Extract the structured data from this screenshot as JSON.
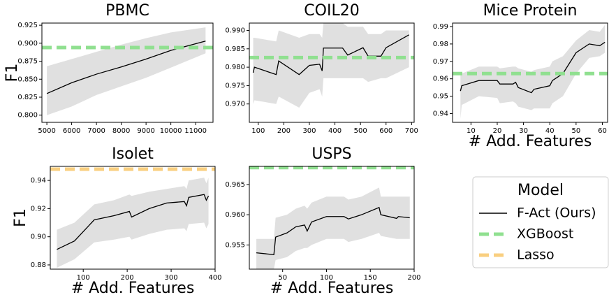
{
  "chart_data": [
    {
      "type": "line",
      "title": "PBMC",
      "ylabel": "F1",
      "x": [
        5000,
        6000,
        7000,
        8000,
        9000,
        10000,
        11400
      ],
      "values": [
        0.83,
        0.845,
        0.857,
        0.867,
        0.878,
        0.89,
        0.903
      ],
      "lower": [
        0.8,
        0.812,
        0.828,
        0.84,
        0.852,
        0.866,
        0.886
      ],
      "upper": [
        0.868,
        0.878,
        0.888,
        0.898,
        0.907,
        0.915,
        0.922
      ],
      "xgboost": 0.894,
      "xlim": [
        4800,
        11700
      ],
      "xticks": [
        5000,
        6000,
        7000,
        8000,
        9000,
        10000,
        11000
      ],
      "ylim": [
        0.79,
        0.928
      ],
      "yticks": [
        {
          "value": 0.8,
          "label": "0.800"
        },
        0.825,
        {
          "value": 0.85,
          "label": "0.850"
        },
        0.875,
        {
          "value": 0.9,
          "label": "0.900"
        },
        0.925
      ]
    },
    {
      "type": "line",
      "title": "COIL20",
      "x": [
        80,
        85,
        170,
        180,
        260,
        300,
        340,
        350,
        355,
        430,
        450,
        510,
        530,
        580,
        600,
        690
      ],
      "values": [
        0.9785,
        0.98,
        0.978,
        0.9817,
        0.978,
        0.9805,
        0.9808,
        0.979,
        0.9852,
        0.9852,
        0.9833,
        0.9853,
        0.983,
        0.983,
        0.9853,
        0.9888
      ],
      "lower": [
        0.97,
        0.971,
        0.97,
        0.972,
        0.969,
        0.973,
        0.974,
        0.972,
        0.977,
        0.977,
        0.977,
        0.977,
        0.976,
        0.977,
        0.977,
        0.98
      ],
      "upper": [
        0.988,
        0.988,
        0.987,
        0.99,
        0.988,
        0.989,
        0.989,
        0.988,
        0.992,
        0.992,
        0.991,
        0.991,
        0.989,
        0.989,
        0.99,
        0.99
      ],
      "xgboost": 0.9826,
      "xlim": [
        65,
        710
      ],
      "xticks": [
        100,
        200,
        300,
        400,
        500,
        600,
        700
      ],
      "ylim": [
        0.965,
        0.992
      ],
      "yticks": [
        {
          "value": 0.97,
          "label": "0.970"
        },
        0.975,
        {
          "value": 0.98,
          "label": "0.980"
        },
        0.985,
        {
          "value": 0.99,
          "label": "0.990"
        }
      ]
    },
    {
      "type": "line",
      "title": "Mice Protein",
      "xlabel": "# Add. Features",
      "x": [
        6,
        6.5,
        13,
        20,
        21,
        26,
        27,
        28,
        33,
        34,
        40,
        41,
        45,
        50,
        55,
        59,
        60,
        61
      ],
      "values": [
        0.953,
        0.956,
        0.959,
        0.959,
        0.957,
        0.957,
        0.958,
        0.955,
        0.952,
        0.954,
        0.956,
        0.959,
        0.963,
        0.975,
        0.98,
        0.979,
        0.98,
        0.981
      ],
      "lower": [
        0.937,
        0.945,
        0.95,
        0.949,
        0.946,
        0.947,
        0.946,
        0.944,
        0.942,
        0.943,
        0.943,
        0.946,
        0.95,
        0.963,
        0.972,
        0.973,
        0.974,
        0.975
      ],
      "upper": [
        0.962,
        0.963,
        0.967,
        0.967,
        0.966,
        0.967,
        0.967,
        0.966,
        0.964,
        0.965,
        0.967,
        0.97,
        0.973,
        0.982,
        0.988,
        0.987,
        0.989,
        0.991
      ],
      "xgboost": 0.963,
      "xlim": [
        3,
        62
      ],
      "xticks": [
        10,
        20,
        30,
        40,
        50,
        60
      ],
      "ylim": [
        0.935,
        0.992
      ],
      "yticks": [
        0.94,
        0.95,
        0.96,
        0.97,
        0.98,
        0.99
      ]
    },
    {
      "type": "line",
      "title": "Isolet",
      "ylabel": "F1",
      "xlabel": "# Add. Features",
      "x": [
        40,
        80,
        125,
        170,
        205,
        210,
        250,
        290,
        330,
        335,
        340,
        375,
        380,
        385
      ],
      "values": [
        0.891,
        0.897,
        0.912,
        0.915,
        0.918,
        0.914,
        0.92,
        0.924,
        0.925,
        0.922,
        0.928,
        0.93,
        0.926,
        0.929
      ],
      "lower": [
        0.878,
        0.884,
        0.896,
        0.898,
        0.9,
        0.898,
        0.902,
        0.905,
        0.906,
        0.904,
        0.909,
        0.91,
        0.906,
        0.909
      ],
      "upper": [
        0.905,
        0.91,
        0.923,
        0.926,
        0.93,
        0.929,
        0.932,
        0.934,
        0.936,
        0.934,
        0.94,
        0.942,
        0.938,
        0.942
      ],
      "lasso": 0.948,
      "xlim": [
        25,
        400
      ],
      "xticks": [
        100,
        200,
        300,
        400
      ],
      "ylim": [
        0.877,
        0.95
      ],
      "yticks": [
        0.88,
        {
          "value": 0.9,
          "label": "0.90"
        },
        0.92,
        0.94
      ]
    },
    {
      "type": "line",
      "title": "USPS",
      "xlabel": "# Add. Features",
      "x": [
        20,
        40,
        42,
        55,
        65,
        75,
        78,
        83,
        100,
        120,
        125,
        140,
        160,
        162,
        180,
        182,
        195
      ],
      "values": [
        0.9537,
        0.9534,
        0.9563,
        0.957,
        0.958,
        0.9583,
        0.9573,
        0.9588,
        0.9597,
        0.9597,
        0.9593,
        0.96,
        0.9612,
        0.96,
        0.9594,
        0.9597,
        0.9595
      ],
      "lower": [
        0.951,
        0.951,
        0.9525,
        0.953,
        0.954,
        0.9545,
        0.9545,
        0.955,
        0.956,
        0.956,
        0.9555,
        0.956,
        0.957,
        0.9565,
        0.956,
        0.956,
        0.956
      ],
      "upper": [
        0.956,
        0.956,
        0.9595,
        0.96,
        0.961,
        0.9615,
        0.961,
        0.962,
        0.963,
        0.963,
        0.9625,
        0.963,
        0.9645,
        0.963,
        0.963,
        0.963,
        0.963
      ],
      "xgboost": 0.9678,
      "xlim": [
        12,
        200
      ],
      "xticks": [
        50,
        100,
        150,
        200
      ],
      "ylim": [
        0.951,
        0.968
      ],
      "yticks": [
        0.955,
        {
          "value": 0.96,
          "label": "0.960"
        },
        0.965
      ]
    }
  ],
  "legend": {
    "title": "Model",
    "items": [
      {
        "name": "F-Act (Ours)",
        "color": "#000000"
      },
      {
        "name": "XGBoost",
        "color": "#90e090"
      },
      {
        "name": "Lasso",
        "color": "#f9cf80"
      }
    ]
  }
}
